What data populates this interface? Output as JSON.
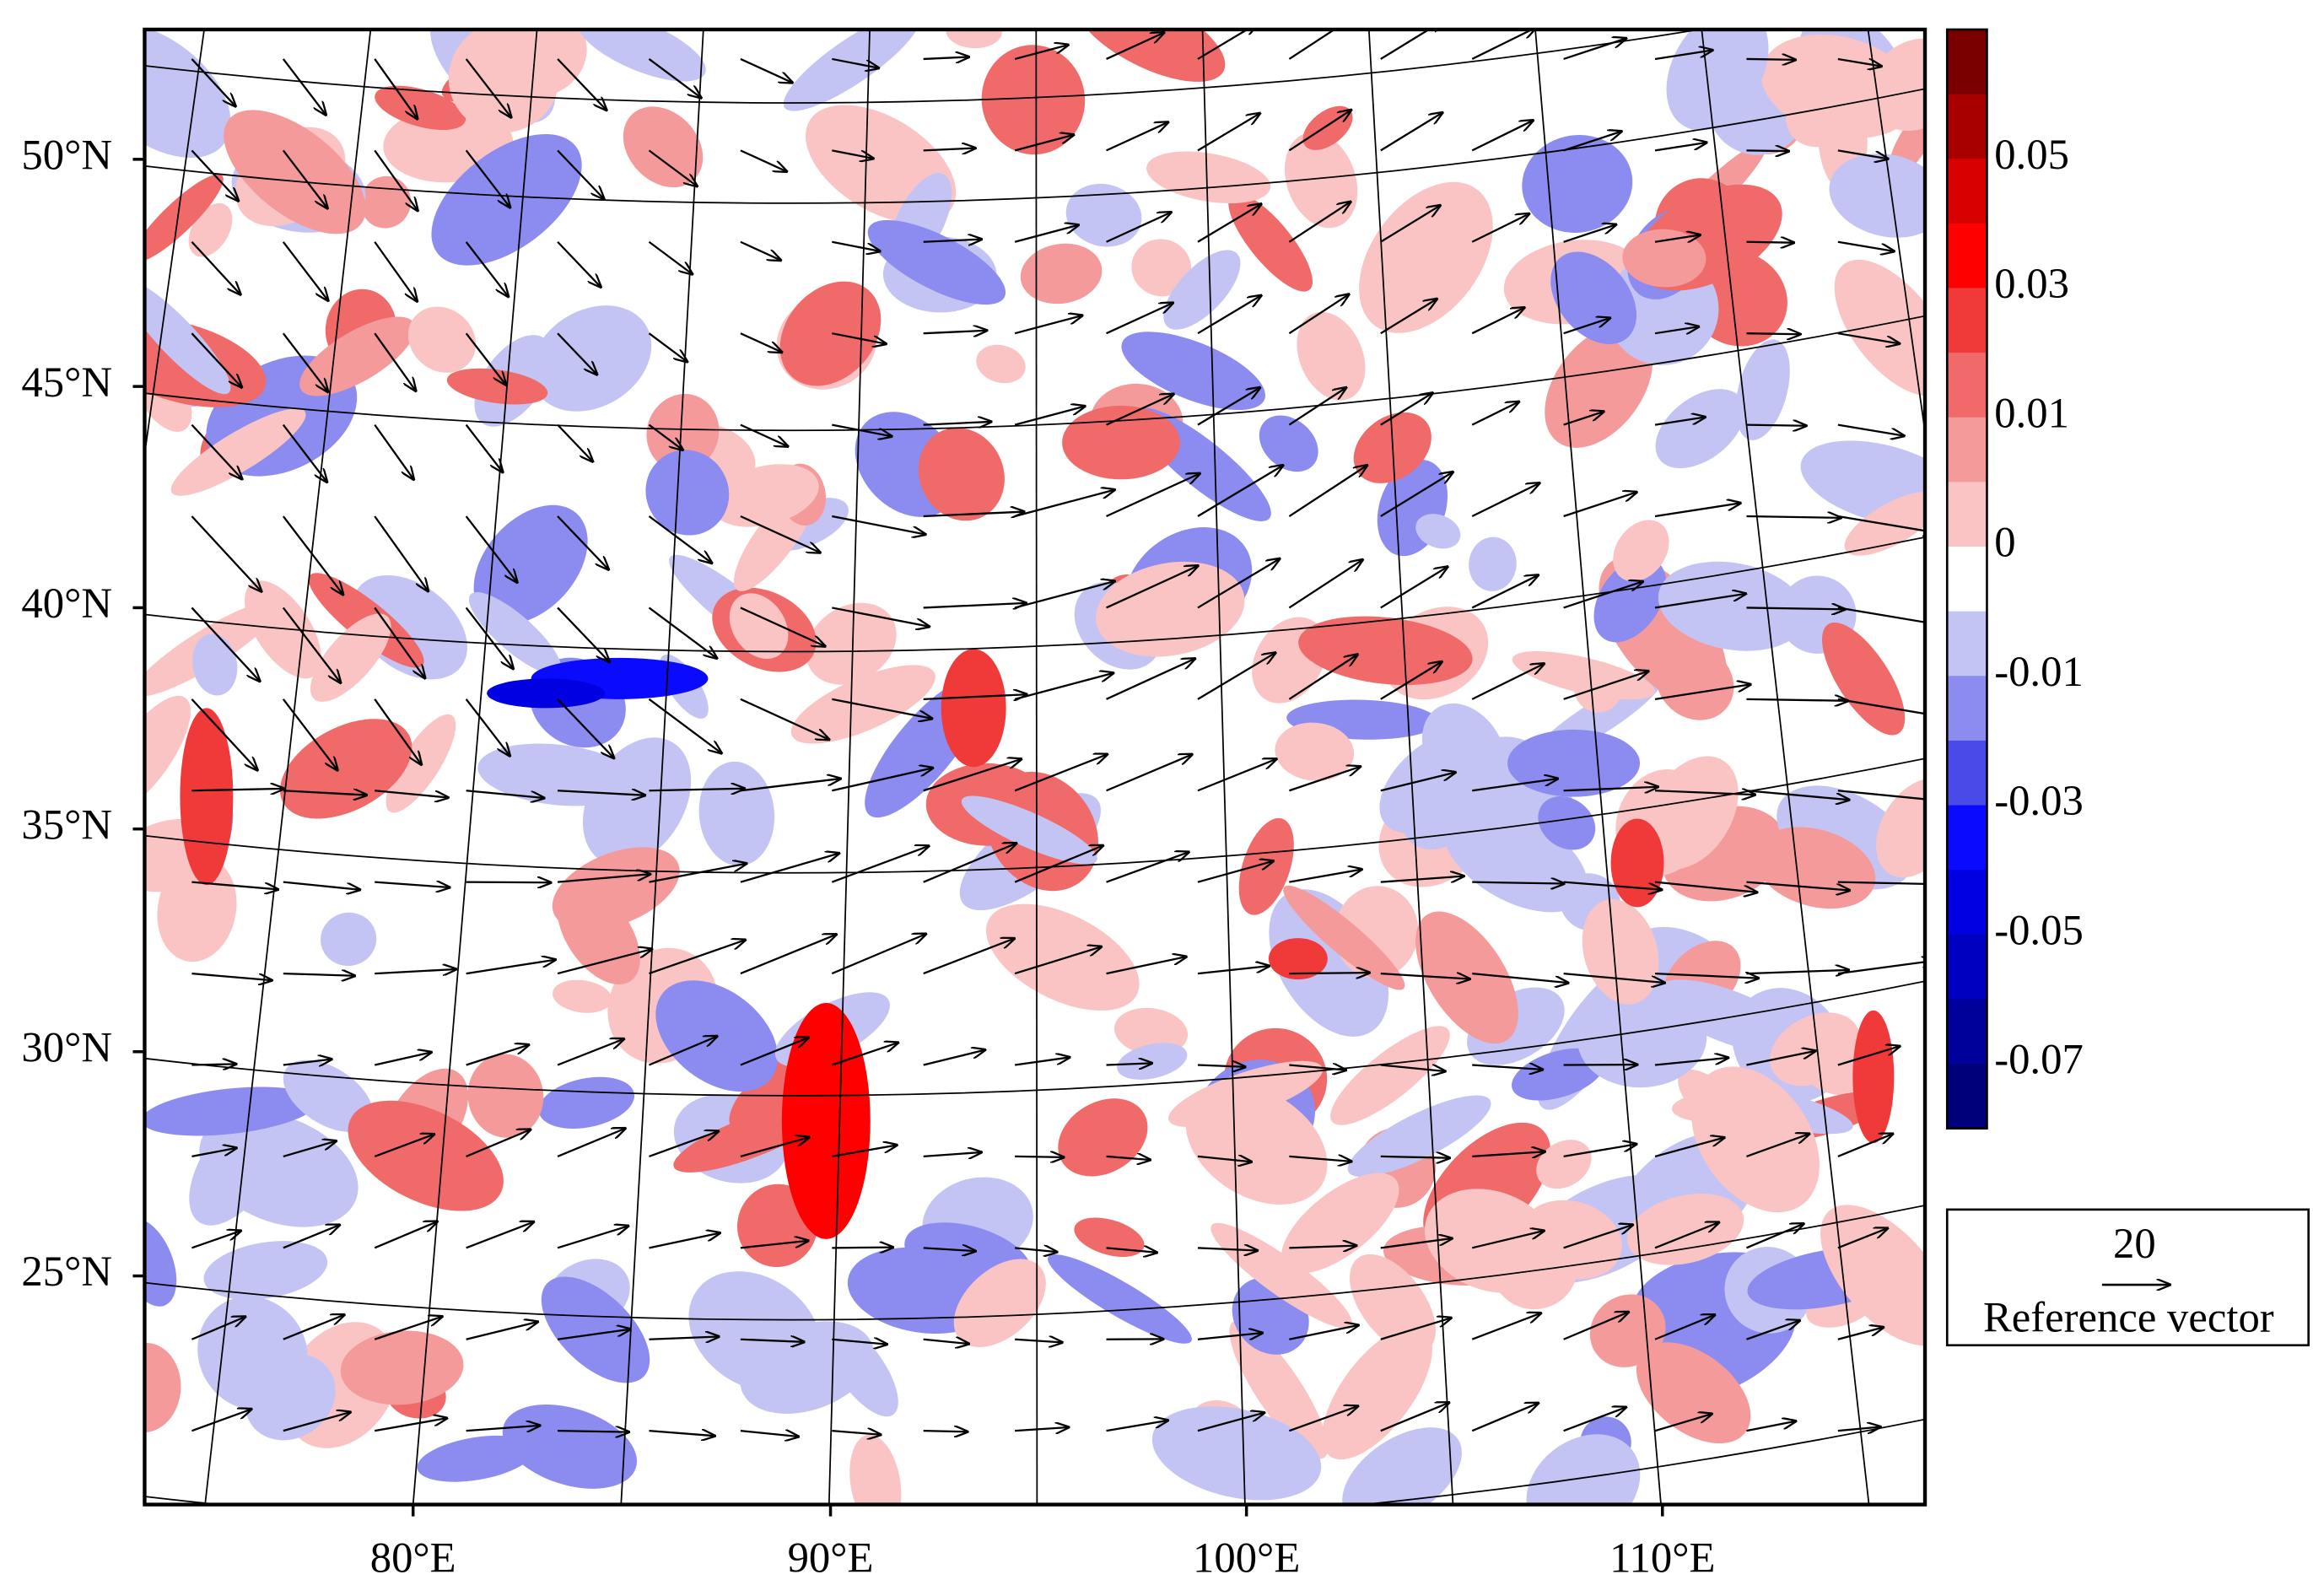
{
  "map": {
    "lat_labels": [
      "50°N",
      "45°N",
      "40°N",
      "35°N",
      "30°N",
      "25°N"
    ],
    "lon_labels": [
      "80°E",
      "90°E",
      "100°E",
      "110°E"
    ]
  },
  "colorbar": {
    "colors": [
      "#7a0000",
      "#a80000",
      "#d80000",
      "#ff0000",
      "#f03a3a",
      "#f06a6a",
      "#f59a9a",
      "#fbc4c4",
      "#ffffff",
      "#c4c4f4",
      "#8c8cf0",
      "#4a4ae8",
      "#0a0aff",
      "#0000e0",
      "#0000c0",
      "#00009a",
      "#00007a"
    ],
    "labels": [
      "0.05",
      "0.03",
      "0.01",
      "0",
      "-0.01",
      "-0.03",
      "-0.05",
      "-0.07"
    ]
  },
  "reference_vector": {
    "magnitude": "20",
    "label": "Reference vector"
  }
}
